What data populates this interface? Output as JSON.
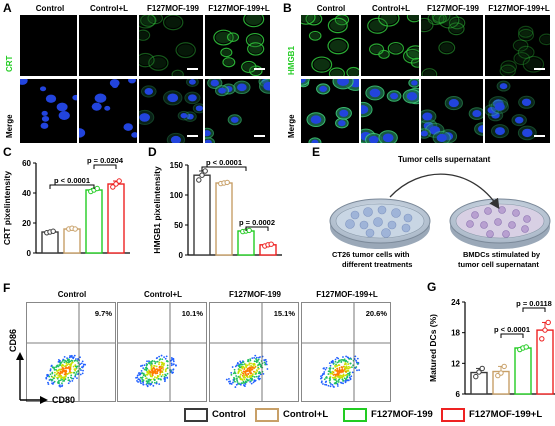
{
  "panels": {
    "A": {
      "label": "A",
      "columns": [
        "Control",
        "Control+L",
        "F127MOF-199",
        "F127MOF-199+L"
      ],
      "row_top": "CRT",
      "row_bottom": "Merge"
    },
    "B": {
      "label": "B",
      "columns": [
        "Control",
        "Control+L",
        "F127MOF-199",
        "F127MOF-199+L"
      ],
      "row_top": "HMGB1",
      "row_bottom": "Merge"
    },
    "C": {
      "label": "C"
    },
    "D": {
      "label": "D"
    },
    "E": {
      "label": "E",
      "supernatant": "Tumor cells supernatant",
      "left_caption_1": "CT26 tumor cells  with",
      "left_caption_2": "different treatments",
      "right_caption_1": "BMDCs stimulated by",
      "right_caption_2": "tumor cell supernatant"
    },
    "F": {
      "label": "F",
      "columns": [
        "Control",
        "Control+L",
        "F127MOF-199",
        "F127MOF-199+L"
      ],
      "percents": [
        "9.7%",
        "10.1%",
        "15.1%",
        "20.6%"
      ],
      "yaxis": "CD86",
      "xaxis": "CD80"
    },
    "G": {
      "label": "G"
    }
  },
  "legend": [
    {
      "label": "Control",
      "color": "#3a3a3a"
    },
    {
      "label": "Control+L",
      "color": "#c8a068"
    },
    {
      "label": "F127MOF-199",
      "color": "#22cc22"
    },
    {
      "label": "F127MOF-199+L",
      "color": "#ee2222"
    }
  ],
  "chart_data": [
    {
      "panel": "C",
      "type": "bar",
      "ylabel": "CRT pixelintensity",
      "ylim": [
        0,
        60
      ],
      "yticks": [
        0,
        20,
        40,
        60
      ],
      "categories": [
        "Control",
        "Control+L",
        "F127MOF-199",
        "F127MOF-199+L"
      ],
      "values": [
        14,
        16,
        42,
        46
      ],
      "points": [
        [
          13.5,
          14,
          14.5
        ],
        [
          16,
          16.5,
          16
        ],
        [
          41,
          42,
          43
        ],
        [
          44,
          46,
          48
        ]
      ],
      "annotations": [
        {
          "text": "p < 0.0001",
          "from": 0,
          "to": 2
        },
        {
          "text": "p = 0.0204",
          "from": 2,
          "to": 3
        }
      ]
    },
    {
      "panel": "D",
      "type": "bar",
      "ylabel": "HMGB1 pixelintensity",
      "ylim": [
        0,
        150
      ],
      "yticks": [
        0,
        50,
        100,
        150
      ],
      "categories": [
        "Control",
        "Control+L",
        "F127MOF-199",
        "F127MOF-199+L"
      ],
      "values": [
        133,
        120,
        40,
        17
      ],
      "points": [
        [
          125,
          133,
          140
        ],
        [
          119,
          120,
          121
        ],
        [
          39,
          40,
          41
        ],
        [
          15,
          17,
          18
        ]
      ],
      "annotations": [
        {
          "text": "p < 0.0001",
          "from": 0,
          "to": 2
        },
        {
          "text": "p = 0.0002",
          "from": 2,
          "to": 3
        }
      ]
    },
    {
      "panel": "G",
      "type": "bar",
      "ylabel": "Matured DCs (%)",
      "ylim": [
        6,
        24
      ],
      "yticks": [
        6,
        12,
        18,
        24
      ],
      "categories": [
        "Control",
        "Control+L",
        "F127MOF-199",
        "F127MOF-199+L"
      ],
      "values": [
        10.2,
        10.4,
        15,
        18.5
      ],
      "points": [
        [
          9.4,
          10.3,
          11
        ],
        [
          9.6,
          10.1,
          11.4
        ],
        [
          14.7,
          15,
          15.2
        ],
        [
          16.8,
          18.5,
          20
        ]
      ],
      "annotations": [
        {
          "text": "p < 0.0001",
          "from": 1,
          "to": 2
        },
        {
          "text": "p = 0.0118",
          "from": 2,
          "to": 3
        }
      ]
    }
  ]
}
